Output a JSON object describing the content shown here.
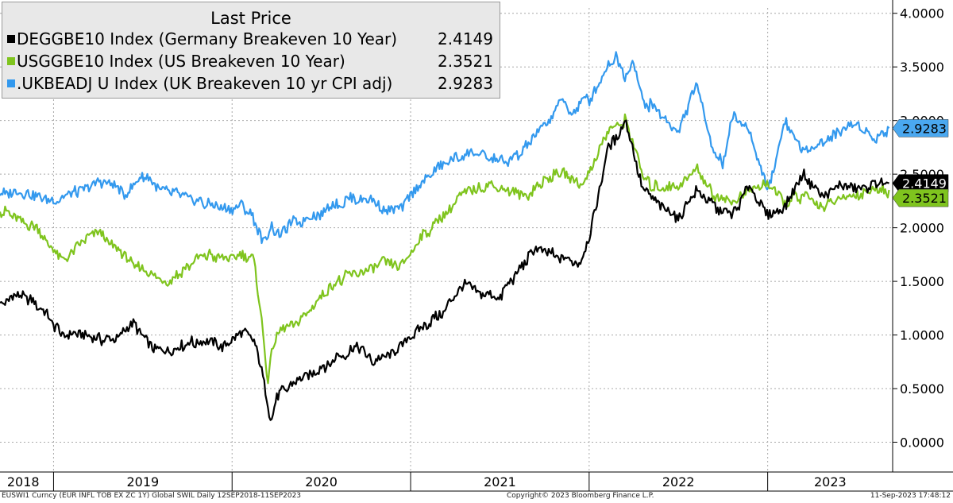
{
  "chart_data": {
    "type": "line",
    "legend": {
      "title": "Last Price",
      "placement": "top-left"
    },
    "ylim": [
      -0.1,
      4.05
    ],
    "yticks": [
      "0.0000",
      "0.5000",
      "1.0000",
      "1.5000",
      "2.0000",
      "2.5000",
      "3.0000",
      "3.5000",
      "4.0000"
    ],
    "ytick_values": [
      0,
      0.5,
      1,
      1.5,
      2,
      2.5,
      3,
      3.5,
      4
    ],
    "xlim": [
      2018.7,
      2023.7
    ],
    "year_labels": [
      {
        "label": "2018",
        "x": 2018.83
      },
      {
        "label": "2019",
        "x": 2019.5
      },
      {
        "label": "2020",
        "x": 2020.5
      },
      {
        "label": "2021",
        "x": 2021.5
      },
      {
        "label": "2022",
        "x": 2022.5
      },
      {
        "label": "2023",
        "x": 2023.35
      }
    ],
    "year_boundaries": [
      2019.0,
      2020.0,
      2021.0,
      2022.0,
      2023.0
    ],
    "series": [
      {
        "name": "DEGGBE10 Index (Germany Breakeven 10 Year)",
        "color": "#000000",
        "last_value": "2.4149",
        "last": 2.4149,
        "x": [
          2018.7,
          2018.8,
          2018.9,
          2019.0,
          2019.05,
          2019.15,
          2019.25,
          2019.35,
          2019.45,
          2019.55,
          2019.65,
          2019.75,
          2019.85,
          2019.95,
          2020.05,
          2020.12,
          2020.16,
          2020.2,
          2020.22,
          2020.25,
          2020.3,
          2020.4,
          2020.5,
          2020.6,
          2020.7,
          2020.8,
          2020.9,
          2021.0,
          2021.1,
          2021.2,
          2021.3,
          2021.4,
          2021.5,
          2021.6,
          2021.7,
          2021.8,
          2021.9,
          2021.95,
          2022.0,
          2022.05,
          2022.1,
          2022.15,
          2022.2,
          2022.25,
          2022.3,
          2022.4,
          2022.5,
          2022.6,
          2022.7,
          2022.8,
          2022.9,
          2023.0,
          2023.1,
          2023.2,
          2023.3,
          2023.4,
          2023.5,
          2023.6,
          2023.68
        ],
        "values": [
          1.3,
          1.37,
          1.3,
          1.1,
          1.0,
          1.0,
          0.95,
          0.98,
          1.1,
          0.9,
          0.85,
          0.92,
          0.95,
          0.9,
          1.05,
          0.95,
          0.7,
          0.35,
          0.22,
          0.4,
          0.5,
          0.6,
          0.7,
          0.8,
          0.88,
          0.75,
          0.85,
          1.0,
          1.1,
          1.25,
          1.45,
          1.4,
          1.35,
          1.6,
          1.8,
          1.75,
          1.7,
          1.65,
          1.9,
          2.3,
          2.7,
          2.85,
          3.0,
          2.7,
          2.35,
          2.2,
          2.1,
          2.35,
          2.2,
          2.1,
          2.4,
          2.1,
          2.2,
          2.5,
          2.3,
          2.4,
          2.35,
          2.4,
          2.4149
        ]
      },
      {
        "name": "USGGBE10 Index (US Breakeven 10 Year)",
        "color": "#7fc41e",
        "last_value": "2.3521",
        "last": 2.3521,
        "x": [
          2018.7,
          2018.8,
          2018.9,
          2019.0,
          2019.05,
          2019.15,
          2019.25,
          2019.35,
          2019.45,
          2019.55,
          2019.65,
          2019.75,
          2019.85,
          2019.95,
          2020.05,
          2020.12,
          2020.16,
          2020.2,
          2020.23,
          2020.27,
          2020.35,
          2020.45,
          2020.55,
          2020.65,
          2020.75,
          2020.85,
          2020.95,
          2021.05,
          2021.15,
          2021.25,
          2021.35,
          2021.45,
          2021.55,
          2021.65,
          2021.75,
          2021.85,
          2021.9,
          2021.95,
          2022.0,
          2022.05,
          2022.1,
          2022.15,
          2022.2,
          2022.25,
          2022.3,
          2022.4,
          2022.5,
          2022.6,
          2022.7,
          2022.8,
          2022.9,
          2023.0,
          2023.1,
          2023.2,
          2023.3,
          2023.4,
          2023.5,
          2023.6,
          2023.68
        ],
        "values": [
          2.15,
          2.1,
          2.0,
          1.8,
          1.7,
          1.85,
          1.95,
          1.8,
          1.65,
          1.55,
          1.5,
          1.65,
          1.75,
          1.7,
          1.75,
          1.7,
          1.2,
          0.55,
          0.9,
          1.05,
          1.1,
          1.25,
          1.45,
          1.55,
          1.6,
          1.7,
          1.65,
          1.9,
          2.05,
          2.25,
          2.35,
          2.4,
          2.35,
          2.3,
          2.45,
          2.5,
          2.45,
          2.4,
          2.5,
          2.7,
          2.9,
          2.95,
          3.0,
          2.8,
          2.45,
          2.35,
          2.4,
          2.55,
          2.3,
          2.25,
          2.35,
          2.4,
          2.25,
          2.3,
          2.2,
          2.25,
          2.3,
          2.35,
          2.3521
        ]
      },
      {
        "name": ".UKBEADJ U Index (UK Breakeven 10 yr CPI adj)",
        "color": "#3399ee",
        "last_value": "2.9283",
        "last": 2.9283,
        "x": [
          2018.7,
          2018.8,
          2018.9,
          2019.0,
          2019.1,
          2019.2,
          2019.3,
          2019.4,
          2019.5,
          2019.6,
          2019.7,
          2019.8,
          2019.9,
          2020.0,
          2020.05,
          2020.12,
          2020.18,
          2020.22,
          2020.27,
          2020.35,
          2020.45,
          2020.55,
          2020.65,
          2020.75,
          2020.85,
          2020.95,
          2021.05,
          2021.15,
          2021.25,
          2021.35,
          2021.45,
          2021.55,
          2021.65,
          2021.75,
          2021.85,
          2021.9,
          2021.95,
          2022.0,
          2022.05,
          2022.1,
          2022.15,
          2022.2,
          2022.25,
          2022.3,
          2022.4,
          2022.5,
          2022.6,
          2022.7,
          2022.75,
          2022.8,
          2022.9,
          2023.0,
          2023.1,
          2023.2,
          2023.3,
          2023.4,
          2023.5,
          2023.6,
          2023.68
        ],
        "values": [
          2.3,
          2.35,
          2.3,
          2.25,
          2.3,
          2.4,
          2.45,
          2.3,
          2.5,
          2.35,
          2.3,
          2.25,
          2.2,
          2.15,
          2.2,
          2.1,
          1.85,
          2.0,
          1.95,
          2.05,
          2.1,
          2.2,
          2.25,
          2.3,
          2.15,
          2.2,
          2.4,
          2.55,
          2.65,
          2.7,
          2.65,
          2.6,
          2.75,
          2.95,
          3.2,
          3.05,
          3.15,
          3.2,
          3.35,
          3.5,
          3.6,
          3.4,
          3.55,
          3.2,
          3.05,
          2.9,
          3.35,
          2.7,
          2.6,
          3.05,
          2.9,
          2.35,
          3.0,
          2.7,
          2.8,
          2.9,
          2.95,
          2.85,
          2.9283
        ]
      }
    ]
  },
  "footer": {
    "left": "EUSWI1 Curncy (EUR INFL TOB EX ZC 1Y) Global SWIL  Daily 12SEP2018-11SEP2023",
    "center": "Copyright© 2023 Bloomberg Finance L.P.",
    "right": "11-Sep-2023 17:48:12"
  }
}
